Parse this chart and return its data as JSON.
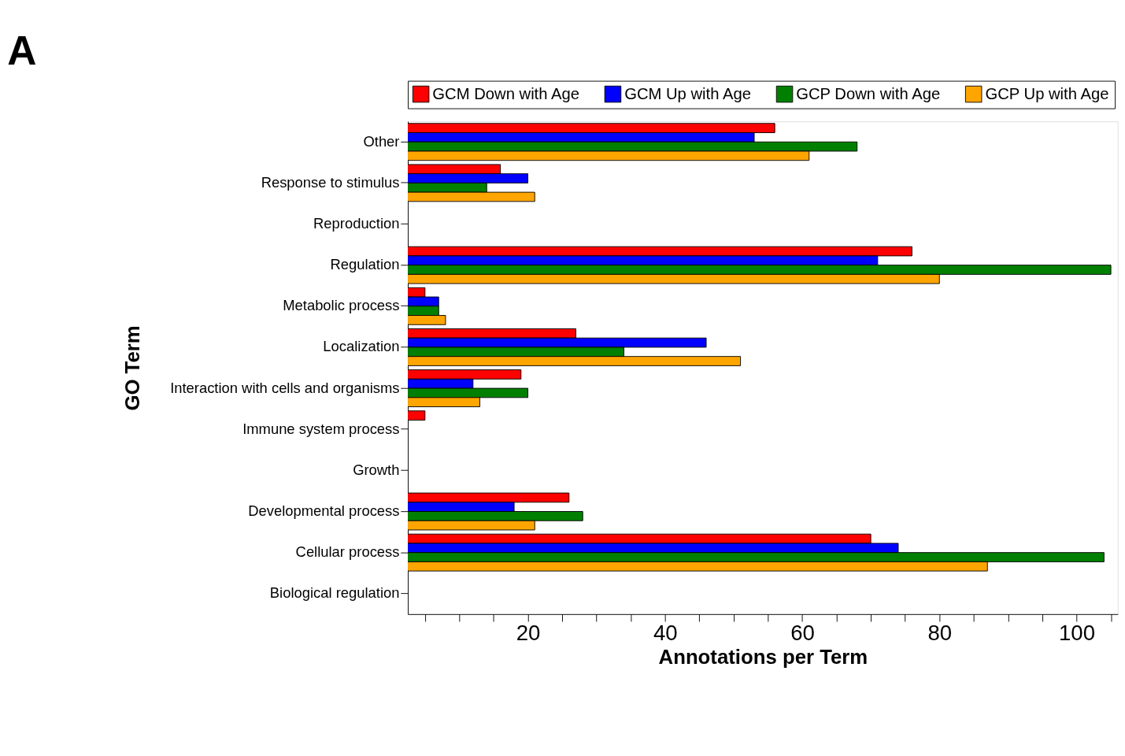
{
  "chart_data": {
    "type": "bar",
    "orientation": "horizontal",
    "title": "A",
    "xlabel": "Annotations per Term",
    "ylabel": "GO Term",
    "categories": [
      "Other",
      "Response to stimulus",
      "Reproduction",
      "Regulation",
      "Metabolic process",
      "Localization",
      "Interaction with cells and organisms",
      "Immune system process",
      "Growth",
      "Developmental process",
      "Cellular process",
      "Biological regulation"
    ],
    "series": [
      {
        "name": "GCM Down with Age",
        "color": "#ff0000",
        "values": [
          56,
          16,
          null,
          76,
          5,
          27,
          19,
          5,
          null,
          26,
          70,
          null
        ]
      },
      {
        "name": "GCM Up with Age",
        "color": "#0000ff",
        "values": [
          53,
          20,
          null,
          71,
          7,
          46,
          12,
          null,
          null,
          18,
          74,
          null
        ]
      },
      {
        "name": "GCP Down with Age",
        "color": "#007f00",
        "values": [
          68,
          14,
          null,
          105,
          7,
          34,
          20,
          null,
          null,
          28,
          104,
          null
        ]
      },
      {
        "name": "GCP Up with Age",
        "color": "#ffa500",
        "values": [
          61,
          21,
          null,
          80,
          8,
          51,
          13,
          null,
          null,
          21,
          87,
          null
        ]
      }
    ],
    "xlim": [
      2.5,
      106
    ],
    "xticks": [
      {
        "value": 5,
        "label": null
      },
      {
        "value": 10,
        "label": null
      },
      {
        "value": 15,
        "label": null
      },
      20,
      {
        "value": 25,
        "label": null
      },
      {
        "value": 30,
        "label": null
      },
      {
        "value": 35,
        "label": null
      },
      40,
      {
        "value": 45,
        "label": null
      },
      {
        "value": 50,
        "label": null
      },
      {
        "value": 55,
        "label": null
      },
      60,
      {
        "value": 65,
        "label": null
      },
      {
        "value": 70,
        "label": null
      },
      {
        "value": 75,
        "label": null
      },
      80,
      {
        "value": 85,
        "label": null
      },
      {
        "value": 90,
        "label": null
      },
      {
        "value": 95,
        "label": null
      },
      100,
      {
        "value": 105,
        "label": null
      }
    ],
    "legend": "top",
    "grid": false
  }
}
